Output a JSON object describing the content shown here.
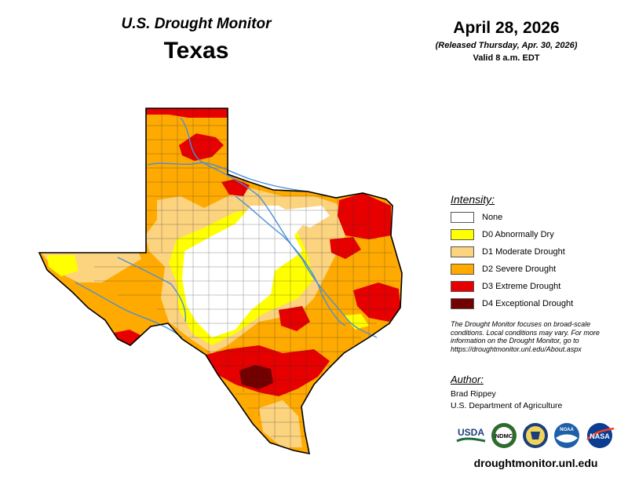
{
  "header": {
    "title": "U.S. Drought Monitor",
    "state": "Texas",
    "date": "April 28, 2026",
    "released": "(Released Thursday, Apr. 30, 2026)",
    "valid": "Valid 8 a.m. EDT"
  },
  "legend": {
    "title": "Intensity:",
    "items": [
      {
        "label": "None",
        "color": "#ffffff"
      },
      {
        "label": "D0 Abnormally Dry",
        "color": "#ffff00"
      },
      {
        "label": "D1 Moderate Drought",
        "color": "#fcd37f"
      },
      {
        "label": "D2 Severe Drought",
        "color": "#ffaa00"
      },
      {
        "label": "D3 Extreme Drought",
        "color": "#e60000"
      },
      {
        "label": "D4 Exceptional Drought",
        "color": "#730000"
      }
    ]
  },
  "note": "The Drought Monitor focuses on broad-scale conditions. Local conditions may vary. For more information on the Drought Monitor, go to https://droughtmonitor.unl.edu/About.aspx",
  "author": {
    "label": "Author:",
    "name": "Brad Rippey",
    "org": "U.S. Department of Agriculture"
  },
  "logos": [
    {
      "text": "USDA",
      "icon": "usda-logo"
    },
    {
      "text": "NDMC",
      "icon": "ndmc-logo"
    },
    {
      "text": "",
      "icon": "doc-seal"
    },
    {
      "text": "NOAA",
      "icon": "noaa-logo"
    },
    {
      "text": "NASA",
      "icon": "nasa-logo"
    }
  ],
  "website": "droughtmonitor.unl.edu",
  "colors": {
    "none": "#ffffff",
    "d0": "#ffff00",
    "d1": "#fcd37f",
    "d2": "#ffaa00",
    "d3": "#e60000",
    "d4": "#730000",
    "rivers": "#4a90d9"
  }
}
